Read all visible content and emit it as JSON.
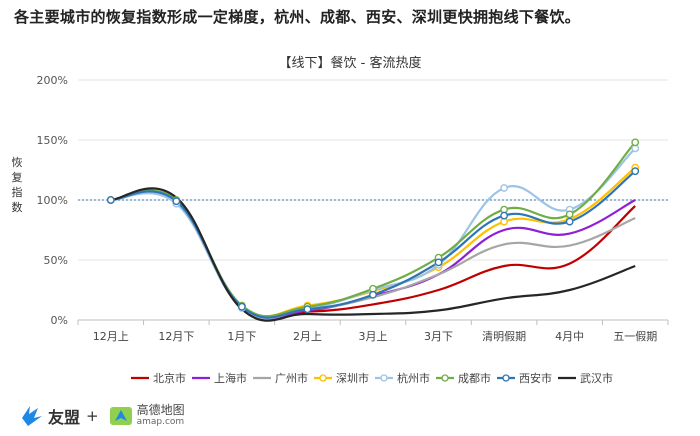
{
  "headline": "各主要城市的恢复指数形成一定梯度，杭州、成都、西安、深圳更快拥抱线下餐饮。",
  "footer": {
    "brand1": "友盟",
    "plus": "+",
    "brand2": "高德地图",
    "brand2_url": "amap.com",
    "brand1_icon": "umeng-logo-icon",
    "brand2_icon": "amap-logo-icon"
  },
  "chart_data": {
    "type": "line",
    "title": "【线下】餐饮 - 客流热度",
    "ylabel": "恢复指数",
    "xlabel": "",
    "categories": [
      "12月上",
      "12月下",
      "1月下",
      "2月上",
      "3月上",
      "3月下",
      "清明假期",
      "4月中",
      "五一假期"
    ],
    "y_ticks": [
      "0%",
      "50%",
      "100%",
      "150%",
      "200%"
    ],
    "ylim": [
      0,
      200
    ],
    "reference_line": 100,
    "grid": true,
    "legend_position": "bottom",
    "series": [
      {
        "name": "北京市",
        "color": "#c00000",
        "values": [
          100,
          99,
          10,
          7,
          13,
          25,
          45,
          47,
          95
        ],
        "markers": false
      },
      {
        "name": "上海市",
        "color": "#8e1fd6",
        "values": [
          100,
          99,
          10,
          8,
          20,
          38,
          75,
          72,
          100
        ],
        "markers": false
      },
      {
        "name": "广州市",
        "color": "#a6a6a6",
        "values": [
          100,
          99,
          10,
          9,
          19,
          38,
          63,
          62,
          85
        ],
        "markers": false
      },
      {
        "name": "深圳市",
        "color": "#ffc000",
        "values": [
          100,
          98,
          11,
          12,
          24,
          44,
          82,
          84,
          127
        ],
        "markers": true
      },
      {
        "name": "杭州市",
        "color": "#9dc3e6",
        "values": [
          100,
          97,
          10,
          10,
          25,
          46,
          110,
          92,
          143
        ],
        "markers": true
      },
      {
        "name": "成都市",
        "color": "#70ad47",
        "values": [
          100,
          100,
          12,
          11,
          26,
          52,
          92,
          88,
          148
        ],
        "markers": true
      },
      {
        "name": "西安市",
        "color": "#2e75b6",
        "values": [
          100,
          99,
          11,
          9,
          21,
          48,
          87,
          82,
          124
        ],
        "markers": true
      },
      {
        "name": "武汉市",
        "color": "#262626",
        "values": [
          100,
          102,
          9,
          5,
          5,
          8,
          18,
          25,
          45
        ],
        "markers": false
      }
    ]
  }
}
